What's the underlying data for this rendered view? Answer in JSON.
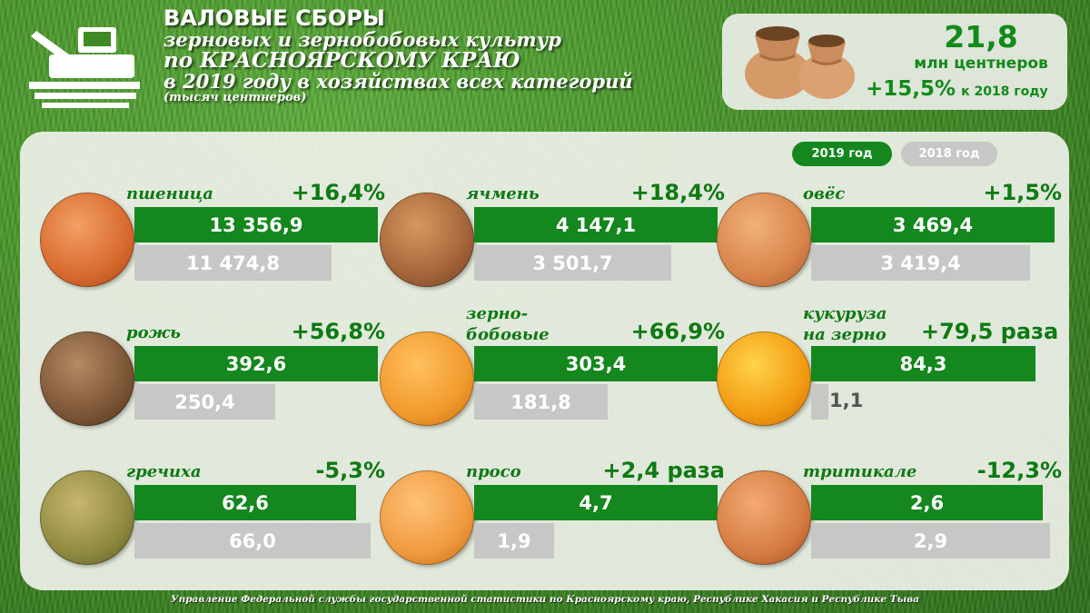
{
  "header": {
    "line1": "ВАЛОВЫЕ СБОРЫ",
    "line2": "зерновых и зернобобовых культур",
    "line3": "по КРАСНОЯРСКОМУ КРАЮ",
    "line4": "в 2019 году в хозяйствах всех категорий",
    "line5": "(тысяч центнеров)"
  },
  "summary": {
    "value": "21,8",
    "unit": "млн центнеров",
    "change": "+15,5%",
    "change_label": "к 2018 году"
  },
  "legend": {
    "current": "2019 год",
    "previous": "2018 год",
    "current_color": "#14871e",
    "previous_color": "#c7c7c5"
  },
  "crops": [
    {
      "name": "пшеница",
      "change": "+16,4%",
      "v2019": "13 356,9",
      "v2018": "11 474,8",
      "frac2019": 1.0,
      "frac2018": 0.81,
      "icon": "wheat-grain-icon"
    },
    {
      "name": "ячмень",
      "change": "+18,4%",
      "v2019": "4 147,1",
      "v2018": "3 501,7",
      "frac2019": 1.0,
      "frac2018": 0.81,
      "icon": "barley-grain-icon"
    },
    {
      "name": "овёс",
      "change": "+1,5%",
      "v2019": "3 469,4",
      "v2018": "3 419,4",
      "frac2019": 1.0,
      "frac2018": 0.9,
      "icon": "oat-grain-icon"
    },
    {
      "name": "рожь",
      "change": "+56,8%",
      "v2019": "392,6",
      "v2018": "250,4",
      "frac2019": 1.0,
      "frac2018": 0.58,
      "icon": "rye-grain-icon"
    },
    {
      "name_line1": "зерно-",
      "name_line2": "бобовые",
      "change": "+66,9%",
      "v2019": "303,4",
      "v2018": "181,8",
      "frac2019": 1.0,
      "frac2018": 0.55,
      "icon": "pea-grain-icon"
    },
    {
      "name_line1": "кукуруза",
      "name_line2": "на зерно",
      "change": "+79,5 раза",
      "v2019": "84,3",
      "v2018": "1,1",
      "frac2019": 0.92,
      "frac2018": 0.07,
      "icon": "corn-grain-icon"
    },
    {
      "name": "гречиха",
      "change": "-5,3%",
      "v2019": "62,6",
      "v2018": "66,0",
      "frac2019": 0.91,
      "frac2018": 0.97,
      "icon": "buckwheat-grain-icon"
    },
    {
      "name": "просо",
      "change": "+2,4 раза",
      "v2019": "4,7",
      "v2018": "1,9",
      "frac2019": 1.0,
      "frac2018": 0.33,
      "icon": "millet-grain-icon"
    },
    {
      "name": "тритикале",
      "change": "-12,3%",
      "v2019": "2,6",
      "v2018": "2,9",
      "frac2019": 0.95,
      "frac2018": 0.98,
      "icon": "triticale-grain-icon"
    }
  ],
  "footer": "Управление Федеральной службы государственной статистики по Красноярскому краю, Республике Хакасия и Республике Тыва"
}
